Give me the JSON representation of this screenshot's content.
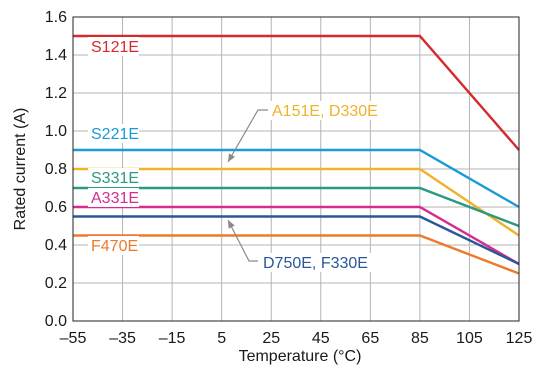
{
  "chart_data": {
    "type": "line",
    "xlabel": "Temperature (°C)",
    "ylabel": "Rated current (A)",
    "xlim": [
      -55,
      125
    ],
    "ylim": [
      0.0,
      1.6
    ],
    "xticks": [
      -55,
      -35,
      -15,
      5,
      25,
      45,
      65,
      85,
      105,
      125
    ],
    "xtick_labels": [
      "–55",
      "–35",
      "–15",
      "5",
      "25",
      "45",
      "65",
      "85",
      "105",
      "125"
    ],
    "yticks": [
      0.0,
      0.2,
      0.4,
      0.6,
      0.8,
      1.0,
      1.2,
      1.4,
      1.6
    ],
    "ytick_labels": [
      "0.0",
      "0.2",
      "0.4",
      "0.6",
      "0.8",
      "1.0",
      "1.2",
      "1.4",
      "1.6"
    ],
    "grid": true,
    "series": [
      {
        "name": "S121E",
        "color": "#d42a2e",
        "points": [
          [
            -55,
            1.5
          ],
          [
            85,
            1.5
          ],
          [
            125,
            0.9
          ]
        ]
      },
      {
        "name": "S221E",
        "color": "#1a9ad6",
        "points": [
          [
            -55,
            0.9
          ],
          [
            85,
            0.9
          ],
          [
            125,
            0.6
          ]
        ]
      },
      {
        "name": "A151E, D330E",
        "color": "#f0b22a",
        "points": [
          [
            -55,
            0.8
          ],
          [
            85,
            0.8
          ],
          [
            125,
            0.45
          ]
        ]
      },
      {
        "name": "S331E",
        "color": "#2a9a82",
        "points": [
          [
            -55,
            0.7
          ],
          [
            85,
            0.7
          ],
          [
            125,
            0.5
          ]
        ]
      },
      {
        "name": "A331E",
        "color": "#d62d8c",
        "points": [
          [
            -55,
            0.6
          ],
          [
            85,
            0.6
          ],
          [
            125,
            0.3
          ]
        ]
      },
      {
        "name": "D750E, F330E",
        "color": "#28579a",
        "points": [
          [
            -55,
            0.55
          ],
          [
            85,
            0.55
          ],
          [
            125,
            0.3
          ]
        ]
      },
      {
        "name": "F470E",
        "color": "#ec7a2c",
        "points": [
          [
            -55,
            0.45
          ],
          [
            85,
            0.45
          ],
          [
            125,
            0.25
          ]
        ]
      }
    ],
    "annotations": [
      {
        "text": "S121E",
        "color": "#d42a2e"
      },
      {
        "text": "A151E, D330E",
        "color": "#f0b22a"
      },
      {
        "text": "S221E",
        "color": "#1a9ad6"
      },
      {
        "text": "S331E",
        "color": "#2a9a82"
      },
      {
        "text": "A331E",
        "color": "#d62d8c"
      },
      {
        "text": "F470E",
        "color": "#ec7a2c"
      },
      {
        "text": "D750E, F330E",
        "color": "#28579a"
      }
    ]
  }
}
